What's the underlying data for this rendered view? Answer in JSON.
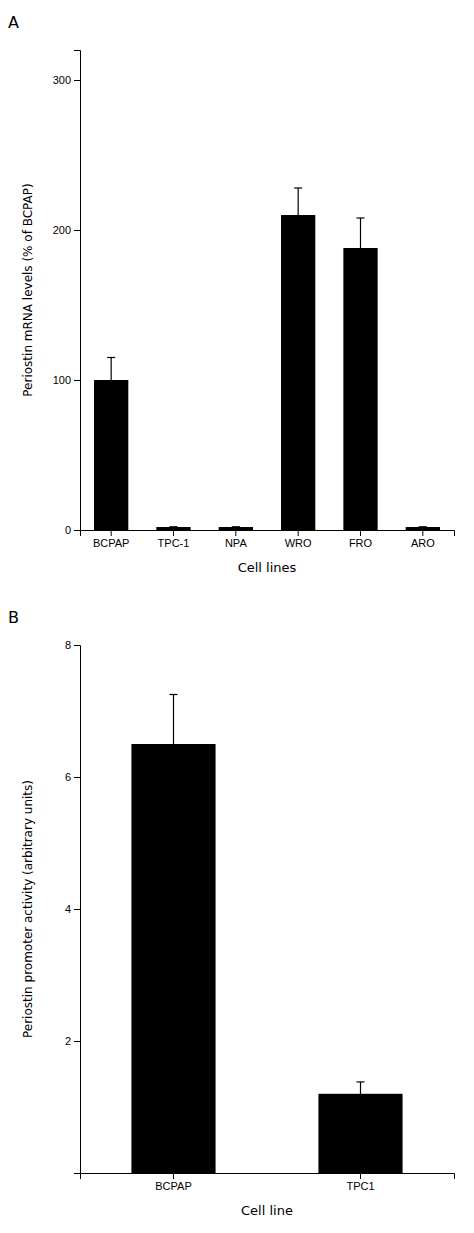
{
  "chart_data": [
    {
      "type": "bar",
      "title": "A",
      "categories": [
        "BCPAP",
        "TPC-1",
        "NPA",
        "WRO",
        "FRO",
        "ARO"
      ],
      "values": [
        100,
        2,
        2,
        210,
        188,
        2
      ],
      "errors": [
        15,
        0,
        0,
        18,
        20,
        0
      ],
      "ylabel": "Periostin mRNA levels (% of BCPAP)",
      "xlabel": "Cell lines",
      "ylim": [
        0,
        320
      ],
      "yticks": [
        0,
        100,
        200,
        300
      ],
      "color": "#000000",
      "grid": false
    },
    {
      "type": "bar",
      "title": "B",
      "categories": [
        "BCPAP",
        "TPC1"
      ],
      "values": [
        6.5,
        1.2
      ],
      "errors": [
        0.75,
        0.18
      ],
      "ylabel": "Periostin promoter activity (arbitrary units)",
      "xlabel": "Cell line",
      "ylim": [
        0,
        8
      ],
      "yticks": [
        2,
        4,
        6,
        8
      ],
      "color": "#000000",
      "grid": false
    }
  ]
}
